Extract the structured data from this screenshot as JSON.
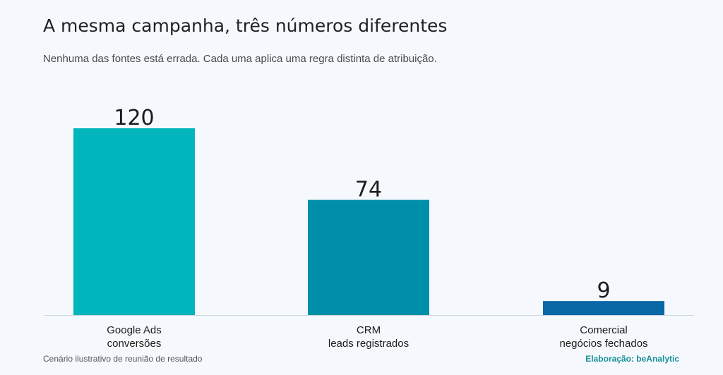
{
  "header": {
    "title": "A mesma campanha, três números diferentes",
    "subtitle": "Nenhuma das fontes está errada. Cada uma aplica uma regra distinta de atribuição."
  },
  "footer": {
    "note": "Cenário ilustrativo de reunião de resultado",
    "credit": "Elaboração: beAnalytic"
  },
  "chart_data": {
    "type": "bar",
    "categories": [
      [
        "Google Ads",
        "conversões"
      ],
      [
        "CRM",
        "leads registrados"
      ],
      [
        "Comercial",
        "negócios fechados"
      ]
    ],
    "values": [
      120,
      74,
      9
    ],
    "colors": [
      "#00b5bc",
      "#008fa8",
      "#0a67a6"
    ],
    "ylim": [
      0,
      120
    ],
    "grid": false,
    "axis_color": "#cfd6dd"
  }
}
